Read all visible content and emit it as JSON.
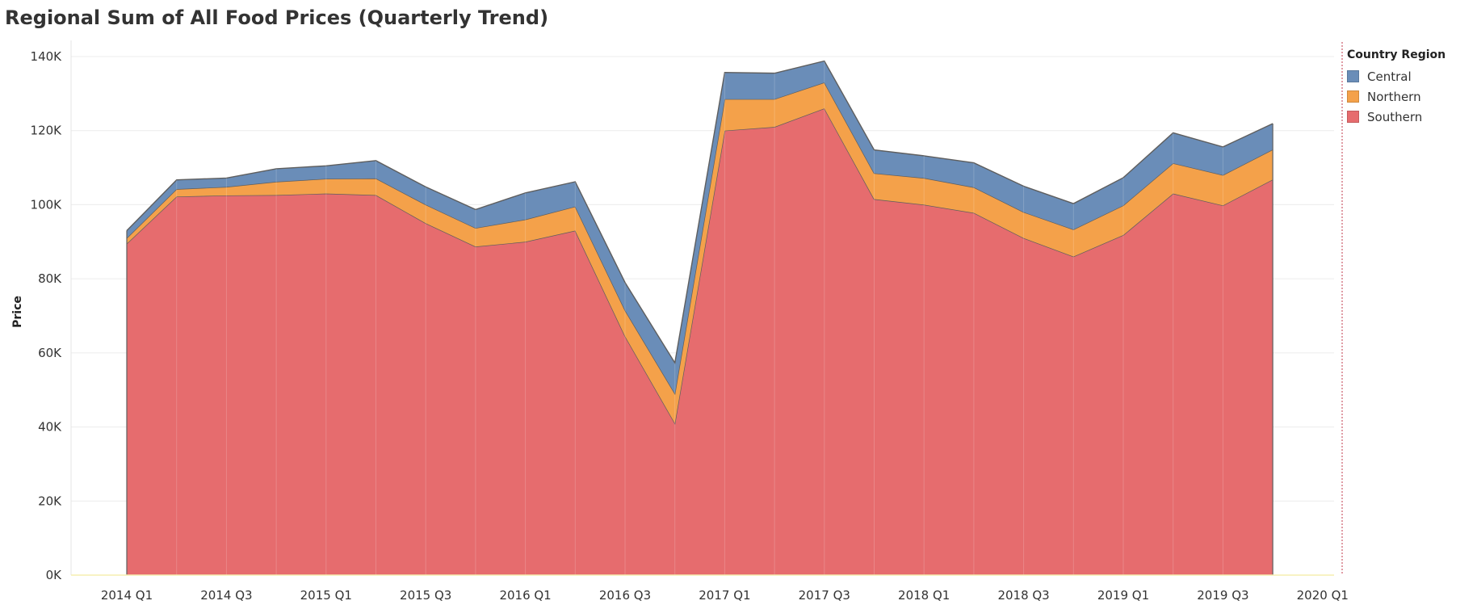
{
  "chart_data": {
    "type": "area",
    "stacked": true,
    "title": "Regional Sum of All Food Prices (Quarterly Trend)",
    "xlabel": "",
    "ylabel": "Price",
    "ylim": [
      0,
      140000
    ],
    "y_ticks": [
      0,
      20000,
      40000,
      60000,
      80000,
      100000,
      120000,
      140000
    ],
    "y_tick_labels": [
      "0K",
      "20K",
      "40K",
      "60K",
      "80K",
      "100K",
      "120K",
      "140K"
    ],
    "x_tick_labels": [
      "2014 Q1",
      "2014 Q3",
      "2015 Q1",
      "2015 Q3",
      "2016 Q1",
      "2016 Q3",
      "2017 Q1",
      "2017 Q3",
      "2018 Q1",
      "2018 Q3",
      "2019 Q1",
      "2019 Q3",
      "2020 Q1"
    ],
    "categories": [
      "2014 Q1",
      "2014 Q2",
      "2014 Q3",
      "2014 Q4",
      "2015 Q1",
      "2015 Q2",
      "2015 Q3",
      "2015 Q4",
      "2016 Q1",
      "2016 Q2",
      "2016 Q3",
      "2016 Q4",
      "2017 Q1",
      "2017 Q2",
      "2017 Q3",
      "2017 Q4",
      "2018 Q1",
      "2018 Q2",
      "2018 Q3",
      "2018 Q4",
      "2019 Q1",
      "2019 Q2",
      "2019 Q3",
      "2019 Q4"
    ],
    "series": [
      {
        "name": "Southern",
        "color": "#e66c6e",
        "values": [
          89500,
          102200,
          102500,
          102600,
          103000,
          102600,
          95000,
          88700,
          90000,
          93000,
          64500,
          41000,
          120000,
          121000,
          126000,
          101500,
          100000,
          97800,
          91000,
          86000,
          91800,
          103000,
          99800,
          106800
        ]
      },
      {
        "name": "Northern",
        "color": "#f4a14a",
        "values": [
          1500,
          2000,
          2300,
          3600,
          4000,
          4500,
          5000,
          5000,
          6000,
          6500,
          7000,
          8000,
          8500,
          7500,
          7000,
          7000,
          7200,
          6900,
          7000,
          7300,
          8000,
          8200,
          8200,
          8100
        ]
      },
      {
        "name": "Central",
        "color": "#6a8db8",
        "values": [
          2000,
          2500,
          2400,
          3500,
          3500,
          4800,
          4800,
          5000,
          7200,
          6700,
          7500,
          8300,
          7200,
          7000,
          5800,
          6300,
          6000,
          6600,
          7000,
          7000,
          7500,
          8200,
          7600,
          7000
        ]
      }
    ],
    "legend": {
      "title": "Country Region",
      "position": "right",
      "order": [
        "Central",
        "Northern",
        "Southern"
      ]
    },
    "grid": true
  }
}
